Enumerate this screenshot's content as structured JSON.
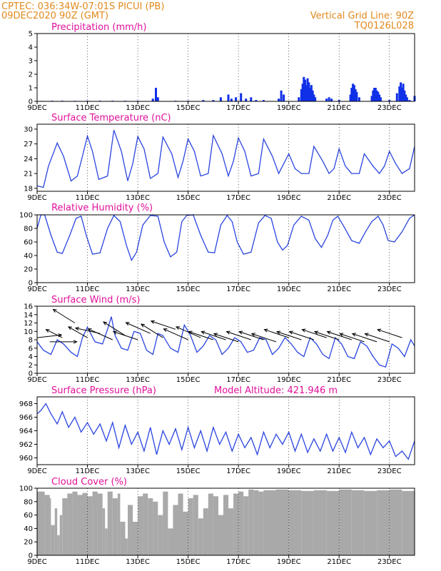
{
  "header": {
    "line1_left": "CPTEC:   036:34W-07:01S   PICUI (PB)",
    "line2_left": "09DEC2020 90Z (GMT)",
    "line2_right": "Vertical Grid Line: 90Z",
    "line3_right": "TQ0126L028"
  },
  "colors": {
    "header": "#e08a1e",
    "title": "#e0109a",
    "series": "#2a45e0",
    "precip": "#1030e8",
    "cloud": "#a9a9a9",
    "wind": "#000000"
  },
  "chart_data": [
    {
      "id": "precip",
      "type": "bar",
      "title": "Precipitation (mm/h)",
      "ylim": [
        0,
        5
      ],
      "yticks": [
        0,
        1,
        2,
        3,
        4,
        5
      ],
      "x_range_days": [
        0,
        15
      ],
      "xticks": [
        "9DEC",
        "11DEC",
        "13DEC",
        "15DEC",
        "17DEC",
        "19DEC",
        "21DEC",
        "23DEC"
      ],
      "x": [
        0.2,
        0.6,
        1.0,
        1.5,
        2.0,
        2.5,
        3.0,
        3.5,
        4.0,
        4.6,
        4.72,
        4.8,
        5.5,
        6.0,
        6.6,
        7.0,
        7.3,
        7.6,
        7.72,
        7.9,
        8.1,
        8.3,
        8.5,
        8.7,
        9.0,
        9.6,
        9.7,
        9.8,
        10.4,
        10.5,
        10.55,
        10.6,
        10.65,
        10.7,
        10.75,
        10.8,
        10.85,
        10.9,
        10.95,
        11.0,
        11.05,
        11.5,
        11.6,
        11.7,
        12.0,
        12.45,
        12.5,
        12.55,
        12.6,
        12.65,
        12.7,
        12.8,
        13.3,
        13.35,
        13.4,
        13.45,
        13.5,
        13.55,
        13.6,
        13.65,
        14.0,
        14.3,
        14.4,
        14.45,
        14.5,
        14.55,
        14.6,
        14.65,
        14.7,
        14.8,
        15.0
      ],
      "values": [
        0.03,
        0.05,
        0.05,
        0.04,
        0.05,
        0.05,
        0.05,
        0.05,
        0.05,
        0.2,
        1.0,
        0.3,
        0.05,
        0.05,
        0.1,
        0.1,
        0.3,
        0.5,
        0.2,
        0.3,
        0.6,
        0.2,
        0.3,
        0.1,
        0.1,
        0.2,
        0.8,
        0.5,
        0.3,
        0.9,
        1.3,
        1.8,
        1.6,
        1.2,
        1.7,
        1.4,
        1.0,
        1.2,
        0.8,
        0.5,
        0.3,
        0.2,
        0.3,
        0.2,
        0.1,
        0.5,
        1.0,
        1.3,
        1.2,
        0.9,
        0.7,
        0.3,
        0.4,
        0.8,
        1.0,
        1.0,
        0.8,
        0.7,
        0.5,
        0.3,
        0.1,
        0.6,
        1.1,
        1.4,
        1.0,
        1.3,
        0.8,
        0.5,
        0.3,
        0.1,
        0.4
      ]
    },
    {
      "id": "temp",
      "type": "line",
      "title": "Surface Temperature (nC)",
      "ylim": [
        17.4,
        31
      ],
      "yticks": [
        18,
        21,
        24,
        27,
        30
      ],
      "x_range_days": [
        0,
        15
      ],
      "xticks": [
        "9DEC",
        "11DEC",
        "13DEC",
        "15DEC",
        "17DEC",
        "19DEC",
        "21DEC",
        "23DEC"
      ],
      "x": [
        0,
        0.25,
        0.45,
        0.8,
        1.05,
        1.35,
        1.6,
        1.8,
        2.0,
        2.2,
        2.45,
        2.8,
        3.05,
        3.35,
        3.6,
        3.8,
        4.0,
        4.25,
        4.5,
        4.8,
        5.0,
        5.35,
        5.6,
        5.8,
        6.0,
        6.25,
        6.5,
        6.8,
        7.0,
        7.35,
        7.6,
        7.8,
        8.0,
        8.25,
        8.5,
        8.8,
        9.0,
        9.35,
        9.6,
        9.8,
        10.0,
        10.25,
        10.5,
        10.8,
        11.0,
        11.35,
        11.6,
        11.8,
        12.0,
        12.25,
        12.5,
        12.8,
        13.0,
        13.35,
        13.6,
        13.8,
        14.0,
        14.25,
        14.5,
        14.8,
        15.0
      ],
      "values": [
        18.5,
        18.2,
        22.5,
        27.2,
        24.5,
        19.5,
        20.5,
        24.5,
        28.6,
        25.5,
        19.8,
        20.5,
        29.8,
        25.5,
        19.5,
        23.0,
        28.5,
        26.0,
        20.0,
        21.0,
        28.4,
        25.0,
        20.2,
        23.5,
        28.0,
        25.5,
        20.5,
        21.0,
        28.7,
        25.0,
        20.5,
        23.5,
        28.2,
        25.5,
        20.5,
        21.0,
        28.0,
        24.5,
        21.0,
        23.0,
        25.0,
        22.0,
        21.0,
        21.0,
        26.5,
        23.5,
        21.0,
        22.0,
        26.0,
        22.5,
        21.0,
        21.0,
        25.0,
        22.5,
        21.0,
        22.5,
        25.5,
        23.0,
        21.0,
        22.0,
        26.5
      ]
    },
    {
      "id": "rh",
      "type": "line",
      "title": "Relative Humidity (%)",
      "ylim": [
        0,
        100
      ],
      "yticks": [
        0,
        20,
        40,
        60,
        80,
        100
      ],
      "x_range_days": [
        0,
        15
      ],
      "xticks": [
        "9DEC",
        "11DEC",
        "13DEC",
        "15DEC",
        "17DEC",
        "19DEC",
        "21DEC",
        "23DEC"
      ],
      "x": [
        0,
        0.15,
        0.3,
        0.55,
        0.8,
        1.0,
        1.3,
        1.55,
        1.75,
        1.95,
        2.2,
        2.5,
        2.8,
        3.05,
        3.3,
        3.55,
        3.75,
        3.95,
        4.2,
        4.5,
        4.8,
        5.05,
        5.3,
        5.55,
        5.75,
        5.95,
        6.2,
        6.5,
        6.8,
        7.05,
        7.3,
        7.55,
        7.75,
        7.95,
        8.2,
        8.5,
        8.8,
        9.05,
        9.3,
        9.55,
        9.75,
        9.95,
        10.2,
        10.5,
        10.8,
        11.05,
        11.3,
        11.55,
        11.75,
        11.95,
        12.2,
        12.5,
        12.8,
        13.05,
        13.3,
        13.55,
        13.75,
        13.95,
        14.2,
        14.5,
        14.8,
        15.0
      ],
      "values": [
        80,
        100,
        100,
        70,
        45,
        43,
        70,
        95,
        98,
        70,
        42,
        44,
        80,
        99,
        90,
        55,
        33,
        45,
        85,
        99,
        98,
        60,
        38,
        45,
        90,
        99,
        100,
        70,
        45,
        44,
        85,
        99,
        90,
        60,
        42,
        45,
        88,
        99,
        95,
        60,
        48,
        55,
        85,
        98,
        92,
        65,
        52,
        70,
        92,
        98,
        82,
        62,
        58,
        75,
        90,
        98,
        85,
        62,
        60,
        75,
        95,
        100
      ]
    },
    {
      "id": "wind",
      "type": "line",
      "title": "Surface Wind (m/s)",
      "ylim": [
        0,
        16
      ],
      "yticks": [
        0,
        2,
        4,
        6,
        8,
        10,
        12,
        14,
        16
      ],
      "x_range_days": [
        0,
        15
      ],
      "xticks": [
        "9DEC",
        "11DEC",
        "13DEC",
        "15DEC",
        "17DEC",
        "19DEC",
        "21DEC",
        "23DEC"
      ],
      "x": [
        0,
        0.25,
        0.55,
        0.8,
        1.05,
        1.35,
        1.6,
        1.8,
        2.0,
        2.3,
        2.6,
        2.8,
        2.95,
        3.1,
        3.35,
        3.6,
        3.85,
        4.1,
        4.35,
        4.6,
        4.8,
        5.0,
        5.3,
        5.6,
        5.85,
        6.1,
        6.35,
        6.6,
        6.85,
        7.1,
        7.35,
        7.6,
        7.85,
        8.1,
        8.35,
        8.6,
        8.85,
        9.1,
        9.35,
        9.6,
        9.85,
        10.1,
        10.35,
        10.6,
        10.85,
        11.1,
        11.35,
        11.6,
        11.85,
        12.1,
        12.35,
        12.6,
        12.85,
        13.1,
        13.35,
        13.6,
        13.85,
        14.1,
        14.35,
        14.6,
        14.85,
        15.0
      ],
      "values": [
        7.5,
        5.5,
        4.5,
        8.0,
        7.0,
        5.0,
        4.0,
        8.5,
        11.0,
        7.5,
        7.0,
        10.5,
        13.5,
        9.0,
        6.0,
        5.5,
        10.0,
        9.5,
        5.5,
        4.5,
        9.5,
        9.0,
        6.0,
        5.0,
        11.5,
        9.0,
        5.0,
        6.5,
        9.0,
        8.0,
        4.5,
        6.0,
        8.5,
        7.5,
        5.0,
        5.5,
        8.5,
        8.0,
        4.5,
        6.0,
        8.5,
        7.0,
        5.0,
        4.0,
        8.5,
        7.0,
        4.5,
        3.5,
        8.5,
        7.0,
        4.0,
        3.5,
        7.5,
        6.5,
        4.0,
        2.0,
        1.5,
        7.0,
        6.0,
        4.0,
        8.0,
        6.5
      ],
      "vectors": [
        {
          "x": 0.0,
          "speed": 8.5,
          "u": 0.9,
          "v": 0.1
        },
        {
          "x": 0.5,
          "speed": 7.5,
          "u": 1.0,
          "v": 0.0
        },
        {
          "x": 1.0,
          "speed": 8.5,
          "u": -0.6,
          "v": 0.3
        },
        {
          "x": 1.5,
          "speed": 12.0,
          "u": -0.8,
          "v": 0.5
        },
        {
          "x": 2.0,
          "speed": 8.5,
          "u": -0.7,
          "v": 0.4
        },
        {
          "x": 2.5,
          "speed": 9.5,
          "u": -0.9,
          "v": 0.2
        },
        {
          "x": 3.0,
          "speed": 8.0,
          "u": -0.9,
          "v": 0.4
        },
        {
          "x": 3.5,
          "speed": 9.0,
          "u": -0.8,
          "v": 0.5
        },
        {
          "x": 4.0,
          "speed": 8.0,
          "u": -0.9,
          "v": 0.3
        },
        {
          "x": 4.5,
          "speed": 9.5,
          "u": -0.9,
          "v": 0.4
        },
        {
          "x": 5.0,
          "speed": 8.5,
          "u": -0.8,
          "v": 0.5
        },
        {
          "x": 5.5,
          "speed": 10.5,
          "u": -0.9,
          "v": 0.3
        },
        {
          "x": 6.0,
          "speed": 8.0,
          "u": -0.9,
          "v": 0.4
        },
        {
          "x": 6.5,
          "speed": 8.5,
          "u": -0.9,
          "v": 0.4
        },
        {
          "x": 7.0,
          "speed": 8.0,
          "u": -0.9,
          "v": 0.3
        },
        {
          "x": 7.5,
          "speed": 8.0,
          "u": -0.9,
          "v": 0.3
        },
        {
          "x": 8.0,
          "speed": 7.5,
          "u": -0.9,
          "v": 0.3
        },
        {
          "x": 8.5,
          "speed": 8.0,
          "u": -0.9,
          "v": 0.3
        },
        {
          "x": 9.0,
          "speed": 8.0,
          "u": -0.9,
          "v": 0.3
        },
        {
          "x": 9.5,
          "speed": 7.5,
          "u": -0.9,
          "v": 0.3
        },
        {
          "x": 10.0,
          "speed": 8.5,
          "u": -0.9,
          "v": 0.3
        },
        {
          "x": 10.5,
          "speed": 8.0,
          "u": -0.9,
          "v": 0.3
        },
        {
          "x": 11.0,
          "speed": 8.0,
          "u": -0.9,
          "v": 0.3
        },
        {
          "x": 11.5,
          "speed": 8.5,
          "u": -0.9,
          "v": 0.3
        },
        {
          "x": 12.0,
          "speed": 8.0,
          "u": -0.9,
          "v": 0.3
        },
        {
          "x": 12.5,
          "speed": 8.0,
          "u": -0.9,
          "v": 0.3
        },
        {
          "x": 13.0,
          "speed": 7.5,
          "u": -0.9,
          "v": 0.3
        },
        {
          "x": 13.5,
          "speed": 7.5,
          "u": -0.9,
          "v": 0.3
        },
        {
          "x": 14.0,
          "speed": 7.5,
          "u": -0.9,
          "v": 0.3
        },
        {
          "x": 14.5,
          "speed": 8.5,
          "u": -0.9,
          "v": 0.3
        }
      ]
    },
    {
      "id": "pres",
      "type": "line",
      "title": "Surface Pressure (hPa)",
      "subtitle": "Model Altitude: 421.946  m",
      "ylim": [
        959,
        969
      ],
      "yticks": [
        960,
        962,
        964,
        966,
        968
      ],
      "x_range_days": [
        0,
        15
      ],
      "xticks": [
        "9DEC",
        "11DEC",
        "13DEC",
        "15DEC",
        "17DEC",
        "19DEC",
        "21DEC",
        "23DEC"
      ],
      "x": [
        0,
        0.15,
        0.35,
        0.55,
        0.8,
        1.0,
        1.25,
        1.5,
        1.75,
        2.0,
        2.25,
        2.5,
        2.75,
        3.0,
        3.25,
        3.5,
        3.75,
        4.0,
        4.25,
        4.5,
        4.75,
        5.0,
        5.25,
        5.5,
        5.75,
        6.0,
        6.25,
        6.5,
        6.75,
        7.0,
        7.25,
        7.5,
        7.75,
        8.0,
        8.25,
        8.5,
        8.75,
        9.0,
        9.25,
        9.5,
        9.75,
        10.0,
        10.25,
        10.5,
        10.75,
        11.0,
        11.25,
        11.5,
        11.75,
        12.0,
        12.25,
        12.5,
        12.75,
        13.0,
        13.25,
        13.5,
        13.75,
        14.0,
        14.25,
        14.5,
        14.75,
        15.0
      ],
      "values": [
        966.5,
        967.0,
        968.0,
        966.5,
        965.0,
        966.8,
        964.5,
        966.0,
        963.8,
        965.2,
        963.5,
        965.0,
        962.5,
        965.2,
        961.5,
        964.8,
        962.0,
        963.8,
        961.0,
        964.5,
        960.5,
        964.0,
        962.0,
        964.3,
        961.2,
        964.5,
        961.5,
        964.0,
        961.0,
        964.5,
        962.0,
        963.8,
        961.0,
        963.5,
        961.5,
        963.0,
        960.5,
        963.8,
        961.5,
        963.5,
        962.0,
        963.8,
        961.0,
        963.5,
        960.8,
        962.8,
        961.0,
        963.5,
        961.0,
        963.0,
        960.8,
        963.8,
        961.5,
        963.0,
        960.5,
        962.8,
        961.5,
        962.5,
        960.2,
        961.0,
        959.8,
        962.5
      ]
    },
    {
      "id": "cloud",
      "type": "area",
      "title": "Cloud Cover (%)",
      "ylim": [
        0,
        100
      ],
      "yticks": [
        0,
        20,
        40,
        60,
        80,
        100
      ],
      "x_range_days": [
        0,
        15
      ],
      "xticks": [
        "9DEC",
        "11DEC",
        "13DEC",
        "15DEC",
        "17DEC",
        "19DEC",
        "21DEC",
        "23DEC"
      ],
      "x": [
        0,
        0.3,
        0.5,
        0.55,
        0.7,
        0.8,
        0.9,
        1.0,
        1.2,
        1.4,
        1.6,
        1.8,
        2.0,
        2.2,
        2.4,
        2.6,
        2.7,
        2.8,
        3.0,
        3.2,
        3.3,
        3.5,
        3.6,
        3.8,
        4.0,
        4.2,
        4.4,
        4.6,
        4.8,
        5.0,
        5.2,
        5.4,
        5.6,
        5.8,
        6.0,
        6.2,
        6.4,
        6.6,
        6.8,
        7.0,
        7.2,
        7.4,
        7.6,
        7.8,
        8.0,
        8.2,
        8.4,
        8.6,
        8.8,
        9.0,
        9.5,
        10.0,
        10.5,
        11.0,
        11.5,
        12.0,
        12.5,
        13.0,
        13.5,
        14.0,
        14.5,
        15.0
      ],
      "values": [
        95,
        90,
        85,
        45,
        70,
        30,
        60,
        85,
        92,
        95,
        90,
        93,
        88,
        95,
        92,
        70,
        40,
        95,
        85,
        92,
        50,
        25,
        75,
        50,
        88,
        92,
        85,
        80,
        60,
        95,
        40,
        75,
        92,
        65,
        85,
        90,
        55,
        70,
        92,
        88,
        60,
        90,
        70,
        92,
        95,
        88,
        98,
        97,
        95,
        97,
        98,
        97,
        96,
        97,
        96,
        98,
        97,
        96,
        97,
        98,
        96,
        97
      ]
    }
  ]
}
